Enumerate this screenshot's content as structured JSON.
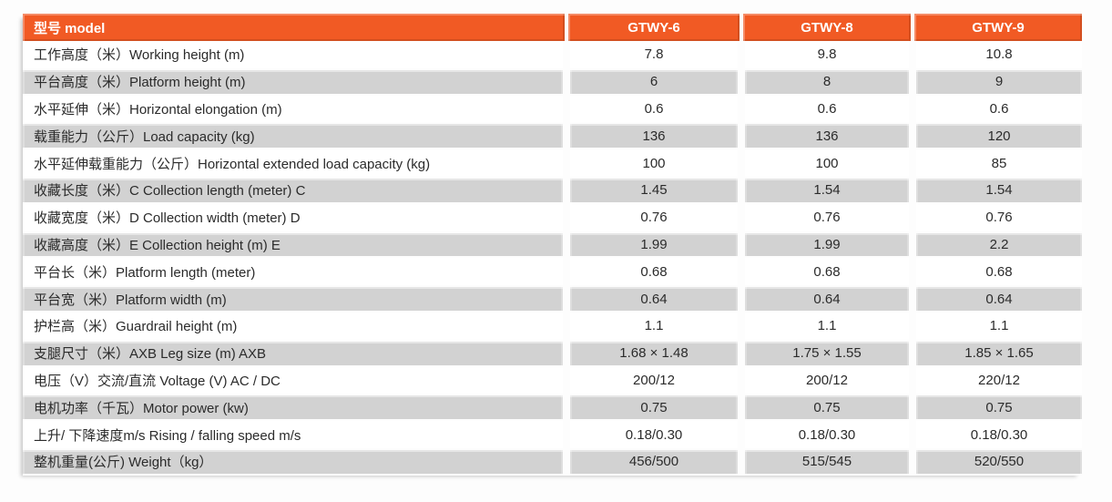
{
  "table": {
    "header": {
      "label": "型号 model",
      "columns": [
        "GTWY-6",
        "GTWY-8",
        "GTWY-9"
      ]
    },
    "rows": [
      {
        "label": "工作高度（米）Working height (m)",
        "values": [
          "7.8",
          "9.8",
          "10.8"
        ]
      },
      {
        "label": "平台高度（米）Platform height (m)",
        "values": [
          "6",
          "8",
          "9"
        ]
      },
      {
        "label": "水平延伸（米）Horizontal elongation (m)",
        "values": [
          "0.6",
          "0.6",
          "0.6"
        ]
      },
      {
        "label": "载重能力（公斤）Load capacity (kg)",
        "values": [
          "136",
          "136",
          "120"
        ]
      },
      {
        "label": "水平延伸载重能力（公斤）Horizontal extended load capacity (kg)",
        "values": [
          "100",
          "100",
          "85"
        ]
      },
      {
        "label": "收藏长度（米）C Collection length (meter) C",
        "values": [
          "1.45",
          "1.54",
          "1.54"
        ]
      },
      {
        "label": "收藏宽度（米）D Collection width (meter) D",
        "values": [
          "0.76",
          "0.76",
          "0.76"
        ]
      },
      {
        "label": "收藏高度（米）E Collection height (m) E",
        "values": [
          "1.99",
          "1.99",
          "2.2"
        ]
      },
      {
        "label": "平台长（米）Platform length (meter)",
        "values": [
          "0.68",
          "0.68",
          "0.68"
        ]
      },
      {
        "label": "平台宽（米）Platform width (m)",
        "values": [
          "0.64",
          "0.64",
          "0.64"
        ]
      },
      {
        "label": "护栏高（米）Guardrail height (m)",
        "values": [
          "1.1",
          "1.1",
          "1.1"
        ]
      },
      {
        "label": "支腿尺寸（米）AXB Leg size (m) AXB",
        "values": [
          "1.68 × 1.48",
          "1.75 × 1.55",
          "1.85 × 1.65"
        ]
      },
      {
        "label": "电压（V）交流/直流 Voltage (V) AC / DC",
        "values": [
          "200/12",
          "200/12",
          "220/12"
        ]
      },
      {
        "label": "电机功率（千瓦）Motor power (kw)",
        "values": [
          "0.75",
          "0.75",
          "0.75"
        ]
      },
      {
        "label": "上升/ 下降速度m/s Rising / falling speed m/s",
        "values": [
          "0.18/0.30",
          "0.18/0.30",
          "0.18/0.30"
        ]
      },
      {
        "label": "整机重量(公斤) Weight（kg）",
        "values": [
          "456/500",
          "515/545",
          "520/550"
        ]
      }
    ],
    "colors": {
      "header_bg": "#f15a24",
      "row_alt_bg": "#d2d2d2",
      "text": "#2b2b2b"
    }
  }
}
